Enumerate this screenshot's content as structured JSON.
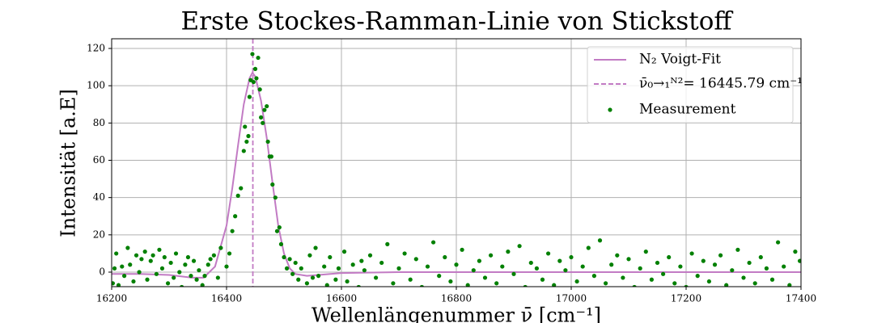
{
  "chart_data": {
    "type": "scatter",
    "title": "Erste Stockes-Ramman-Linie von Stickstoff",
    "x_label": "Wellenlängenummer ν̄ [cm⁻¹]",
    "y_label": "Intensität [a.E]",
    "xlim": [
      16200,
      17400
    ],
    "ylim": [
      -7.8,
      125.2
    ],
    "xticks": [
      16200,
      16400,
      16600,
      16800,
      17000,
      17200,
      17400
    ],
    "yticks": [
      0,
      20,
      40,
      60,
      80,
      100,
      120
    ],
    "grid": true,
    "legend": "upper right",
    "series": [
      {
        "name": "N₂ Voigt-Fit",
        "kind": "line",
        "color": "#c27bc4",
        "x": [
          16200,
          16250,
          16300,
          16340,
          16360,
          16380,
          16400,
          16410,
          16420,
          16430,
          16440,
          16445,
          16450,
          16460,
          16470,
          16480,
          16490,
          16500,
          16510,
          16520,
          16540,
          16560,
          16600,
          16700,
          16800,
          17000,
          17200,
          17400
        ],
        "values": [
          -1,
          -1,
          -1.5,
          -3,
          -3,
          3,
          25,
          45,
          68,
          90,
          104,
          107,
          105,
          92,
          72,
          48,
          25,
          10,
          2,
          -1,
          -2,
          -1.5,
          -0.5,
          0,
          0,
          0,
          0,
          0
        ]
      },
      {
        "name": "ν̄₀→₁ᴺ²= 16445.79 cm⁻¹",
        "kind": "vline",
        "color": "#c27bc4",
        "x": 16445.79
      },
      {
        "name": "Measurement",
        "kind": "points",
        "color": "#008000",
        "x": [
          16202,
          16205,
          16208,
          16212,
          16218,
          16222,
          16228,
          16232,
          16238,
          16243,
          16248,
          16252,
          16258,
          16262,
          16268,
          16272,
          16278,
          16283,
          16288,
          16292,
          16298,
          16303,
          16308,
          16312,
          16318,
          16322,
          16328,
          16333,
          16338,
          16343,
          16348,
          16352,
          16358,
          16362,
          16368,
          16372,
          16378,
          16385,
          16390,
          16400,
          16405,
          16410,
          16415,
          16420,
          16425,
          16430,
          16432,
          16435,
          16438,
          16440,
          16442,
          16445,
          16447,
          16450,
          16452,
          16455,
          16458,
          16460,
          16463,
          16466,
          16470,
          16472,
          16475,
          16478,
          16480,
          16485,
          16488,
          16492,
          16495,
          16500,
          16505,
          16510,
          16515,
          16520,
          16525,
          16530,
          16540,
          16545,
          16550,
          16555,
          16560,
          16570,
          16575,
          16580,
          16590,
          16595,
          16605,
          16610,
          16620,
          16630,
          16635,
          16640,
          16650,
          16660,
          16670,
          16680,
          16690,
          16700,
          16710,
          16720,
          16730,
          16740,
          16750,
          16760,
          16770,
          16780,
          16790,
          16800,
          16810,
          16820,
          16830,
          16840,
          16850,
          16860,
          16870,
          16880,
          16890,
          16900,
          16910,
          16920,
          16930,
          16940,
          16950,
          16960,
          16970,
          16980,
          16990,
          17000,
          17010,
          17020,
          17030,
          17040,
          17050,
          17060,
          17070,
          17080,
          17090,
          17100,
          17110,
          17120,
          17130,
          17140,
          17150,
          17160,
          17170,
          17180,
          17190,
          17200,
          17210,
          17220,
          17230,
          17240,
          17250,
          17260,
          17270,
          17280,
          17290,
          17300,
          17310,
          17320,
          17330,
          17340,
          17350,
          17360,
          17370,
          17380,
          17390,
          17398
        ],
        "values": [
          -6,
          2,
          10,
          -7,
          3,
          -2,
          13,
          4,
          -5,
          9,
          0,
          7,
          11,
          -4,
          6,
          9,
          -1,
          12,
          2,
          8,
          -6,
          5,
          -3,
          10,
          0,
          -8,
          4,
          8,
          -2,
          6,
          -4,
          1,
          -7,
          -2,
          4,
          7,
          9,
          -3,
          13,
          3,
          10,
          22,
          30,
          41,
          45,
          65,
          78,
          70,
          73,
          94,
          103,
          117,
          102,
          109,
          104,
          115,
          98,
          83,
          80,
          87,
          89,
          70,
          62,
          62,
          47,
          40,
          22,
          24,
          15,
          8,
          2,
          7,
          -1,
          5,
          -4,
          2,
          -6,
          9,
          -3,
          13,
          -2,
          3,
          -7,
          8,
          -4,
          2,
          11,
          -5,
          4,
          -8,
          6,
          1,
          9,
          -3,
          5,
          15,
          -6,
          2,
          10,
          -4,
          7,
          -8,
          3,
          16,
          -2,
          8,
          -5,
          4,
          12,
          -7,
          1,
          6,
          -3,
          9,
          -6,
          3,
          11,
          -1,
          14,
          -8,
          5,
          2,
          -4,
          10,
          -7,
          6,
          1,
          8,
          -5,
          3,
          13,
          -2,
          17,
          -6,
          4,
          9,
          -3,
          7,
          -8,
          2,
          11,
          -4,
          5,
          -1,
          8,
          -6,
          3,
          -8,
          10,
          -2,
          6,
          -5,
          4,
          9,
          -7,
          1,
          12,
          -3,
          5,
          -6,
          8,
          2,
          -4,
          16,
          3,
          -7,
          11,
          6
        ]
      }
    ]
  }
}
